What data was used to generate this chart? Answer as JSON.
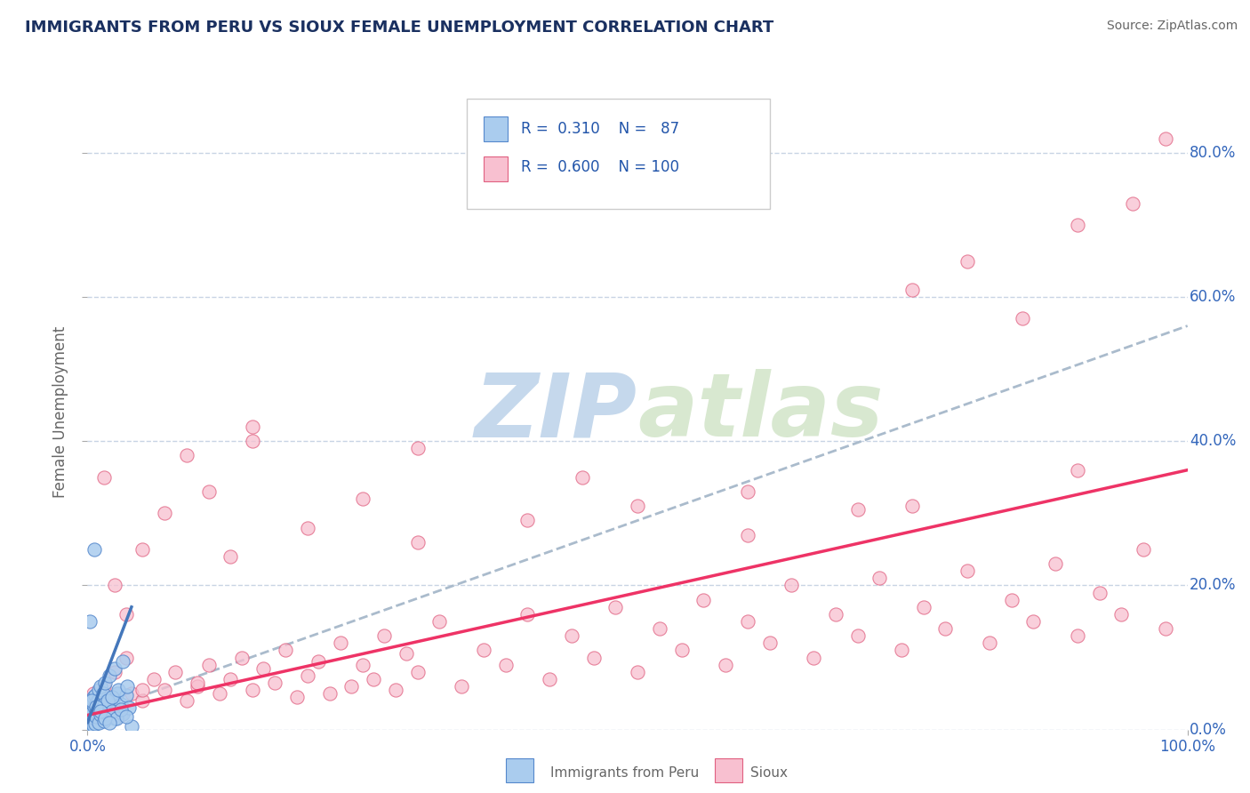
{
  "title": "IMMIGRANTS FROM PERU VS SIOUX FEMALE UNEMPLOYMENT CORRELATION CHART",
  "source_text": "Source: ZipAtlas.com",
  "ylabel": "Female Unemployment",
  "legend_label_1": "Immigrants from Peru",
  "legend_label_2": "Sioux",
  "R1": 0.31,
  "N1": 87,
  "R2": 0.6,
  "N2": 100,
  "color_blue_fill": "#AACCEE",
  "color_blue_edge": "#5588CC",
  "color_pink_fill": "#F8C0D0",
  "color_pink_edge": "#E06080",
  "color_blue_line": "#4477BB",
  "color_pink_line": "#EE3366",
  "color_dashed": "#AABBCC",
  "xlim": [
    0.0,
    1.0
  ],
  "ylim": [
    0.0,
    0.88
  ],
  "x_tick_positions": [
    0.0,
    1.0
  ],
  "x_tick_labels": [
    "0.0%",
    "100.0%"
  ],
  "y_ticks": [
    0.0,
    0.2,
    0.4,
    0.6,
    0.8
  ],
  "y_tick_labels_right": [
    "0.0%",
    "20.0%",
    "40.0%",
    "60.0%",
    "80.0%"
  ],
  "background_color": "#FFFFFF",
  "watermark_zip": "ZIP",
  "watermark_atlas": "atlas",
  "watermark_color": "#C5D8EC",
  "grid_color": "#C8D4E4",
  "title_color": "#1A3060",
  "axis_label_color": "#666666",
  "right_tick_color": "#3366BB",
  "legend_text_color": "#2255AA",
  "blue_scatter_x": [
    0.001,
    0.002,
    0.003,
    0.003,
    0.004,
    0.004,
    0.005,
    0.005,
    0.005,
    0.006,
    0.006,
    0.007,
    0.007,
    0.008,
    0.008,
    0.009,
    0.009,
    0.01,
    0.01,
    0.011,
    0.011,
    0.012,
    0.012,
    0.013,
    0.014,
    0.015,
    0.016,
    0.017,
    0.018,
    0.02,
    0.021,
    0.022,
    0.023,
    0.024,
    0.025,
    0.027,
    0.03,
    0.032,
    0.035,
    0.038,
    0.001,
    0.002,
    0.003,
    0.004,
    0.005,
    0.006,
    0.007,
    0.008,
    0.009,
    0.01,
    0.011,
    0.012,
    0.013,
    0.014,
    0.015,
    0.016,
    0.018,
    0.02,
    0.022,
    0.025,
    0.028,
    0.032,
    0.036,
    0.04,
    0.001,
    0.002,
    0.003,
    0.004,
    0.005,
    0.006,
    0.007,
    0.008,
    0.01,
    0.012,
    0.015,
    0.018,
    0.022,
    0.026,
    0.03,
    0.035,
    0.002,
    0.004,
    0.006,
    0.008,
    0.012,
    0.016,
    0.02
  ],
  "blue_scatter_y": [
    0.02,
    0.025,
    0.018,
    0.03,
    0.015,
    0.022,
    0.028,
    0.01,
    0.032,
    0.018,
    0.025,
    0.012,
    0.035,
    0.02,
    0.028,
    0.015,
    0.038,
    0.022,
    0.03,
    0.018,
    0.025,
    0.012,
    0.04,
    0.028,
    0.02,
    0.035,
    0.015,
    0.045,
    0.025,
    0.03,
    0.038,
    0.02,
    0.042,
    0.028,
    0.015,
    0.05,
    0.035,
    0.022,
    0.048,
    0.03,
    0.035,
    0.028,
    0.022,
    0.038,
    0.045,
    0.032,
    0.048,
    0.025,
    0.04,
    0.055,
    0.03,
    0.06,
    0.022,
    0.05,
    0.035,
    0.065,
    0.04,
    0.075,
    0.045,
    0.085,
    0.055,
    0.095,
    0.06,
    0.005,
    0.008,
    0.005,
    0.01,
    0.012,
    0.006,
    0.015,
    0.008,
    0.018,
    0.01,
    0.02,
    0.012,
    0.022,
    0.025,
    0.015,
    0.028,
    0.018,
    0.15,
    0.04,
    0.25,
    0.032,
    0.025,
    0.015,
    0.01
  ],
  "pink_scatter_x": [
    0.005,
    0.01,
    0.015,
    0.02,
    0.025,
    0.03,
    0.035,
    0.04,
    0.05,
    0.06,
    0.07,
    0.08,
    0.09,
    0.1,
    0.11,
    0.12,
    0.13,
    0.14,
    0.15,
    0.16,
    0.17,
    0.18,
    0.19,
    0.2,
    0.21,
    0.22,
    0.23,
    0.24,
    0.25,
    0.26,
    0.27,
    0.28,
    0.29,
    0.3,
    0.32,
    0.34,
    0.36,
    0.38,
    0.4,
    0.42,
    0.44,
    0.46,
    0.48,
    0.5,
    0.52,
    0.54,
    0.56,
    0.58,
    0.6,
    0.62,
    0.64,
    0.66,
    0.68,
    0.7,
    0.72,
    0.74,
    0.76,
    0.78,
    0.8,
    0.82,
    0.84,
    0.86,
    0.88,
    0.9,
    0.92,
    0.94,
    0.96,
    0.98,
    0.015,
    0.025,
    0.035,
    0.05,
    0.07,
    0.09,
    0.11,
    0.13,
    0.15,
    0.2,
    0.25,
    0.3,
    0.4,
    0.5,
    0.6,
    0.7,
    0.75,
    0.8,
    0.85,
    0.9,
    0.95,
    0.98,
    0.15,
    0.3,
    0.45,
    0.6,
    0.75,
    0.9,
    0.05,
    0.1
  ],
  "pink_scatter_y": [
    0.05,
    0.04,
    0.06,
    0.03,
    0.08,
    0.02,
    0.1,
    0.05,
    0.04,
    0.07,
    0.055,
    0.08,
    0.04,
    0.06,
    0.09,
    0.05,
    0.07,
    0.1,
    0.055,
    0.085,
    0.065,
    0.11,
    0.045,
    0.075,
    0.095,
    0.05,
    0.12,
    0.06,
    0.09,
    0.07,
    0.13,
    0.055,
    0.105,
    0.08,
    0.15,
    0.06,
    0.11,
    0.09,
    0.16,
    0.07,
    0.13,
    0.1,
    0.17,
    0.08,
    0.14,
    0.11,
    0.18,
    0.09,
    0.15,
    0.12,
    0.2,
    0.1,
    0.16,
    0.13,
    0.21,
    0.11,
    0.17,
    0.14,
    0.22,
    0.12,
    0.18,
    0.15,
    0.23,
    0.13,
    0.19,
    0.16,
    0.25,
    0.14,
    0.35,
    0.2,
    0.16,
    0.25,
    0.3,
    0.38,
    0.33,
    0.24,
    0.42,
    0.28,
    0.32,
    0.26,
    0.29,
    0.31,
    0.27,
    0.305,
    0.61,
    0.65,
    0.57,
    0.7,
    0.73,
    0.82,
    0.4,
    0.39,
    0.35,
    0.33,
    0.31,
    0.36,
    0.055,
    0.065
  ],
  "blue_line_x0": 0.0,
  "blue_line_x1": 0.04,
  "blue_line_y0": 0.01,
  "blue_line_y1": 0.17,
  "pink_line_x0": 0.0,
  "pink_line_x1": 1.0,
  "pink_line_y0": 0.02,
  "pink_line_y1": 0.36,
  "dashed_line_x0": 0.0,
  "dashed_line_x1": 1.0,
  "dashed_line_y0": 0.02,
  "dashed_line_y1": 0.56
}
